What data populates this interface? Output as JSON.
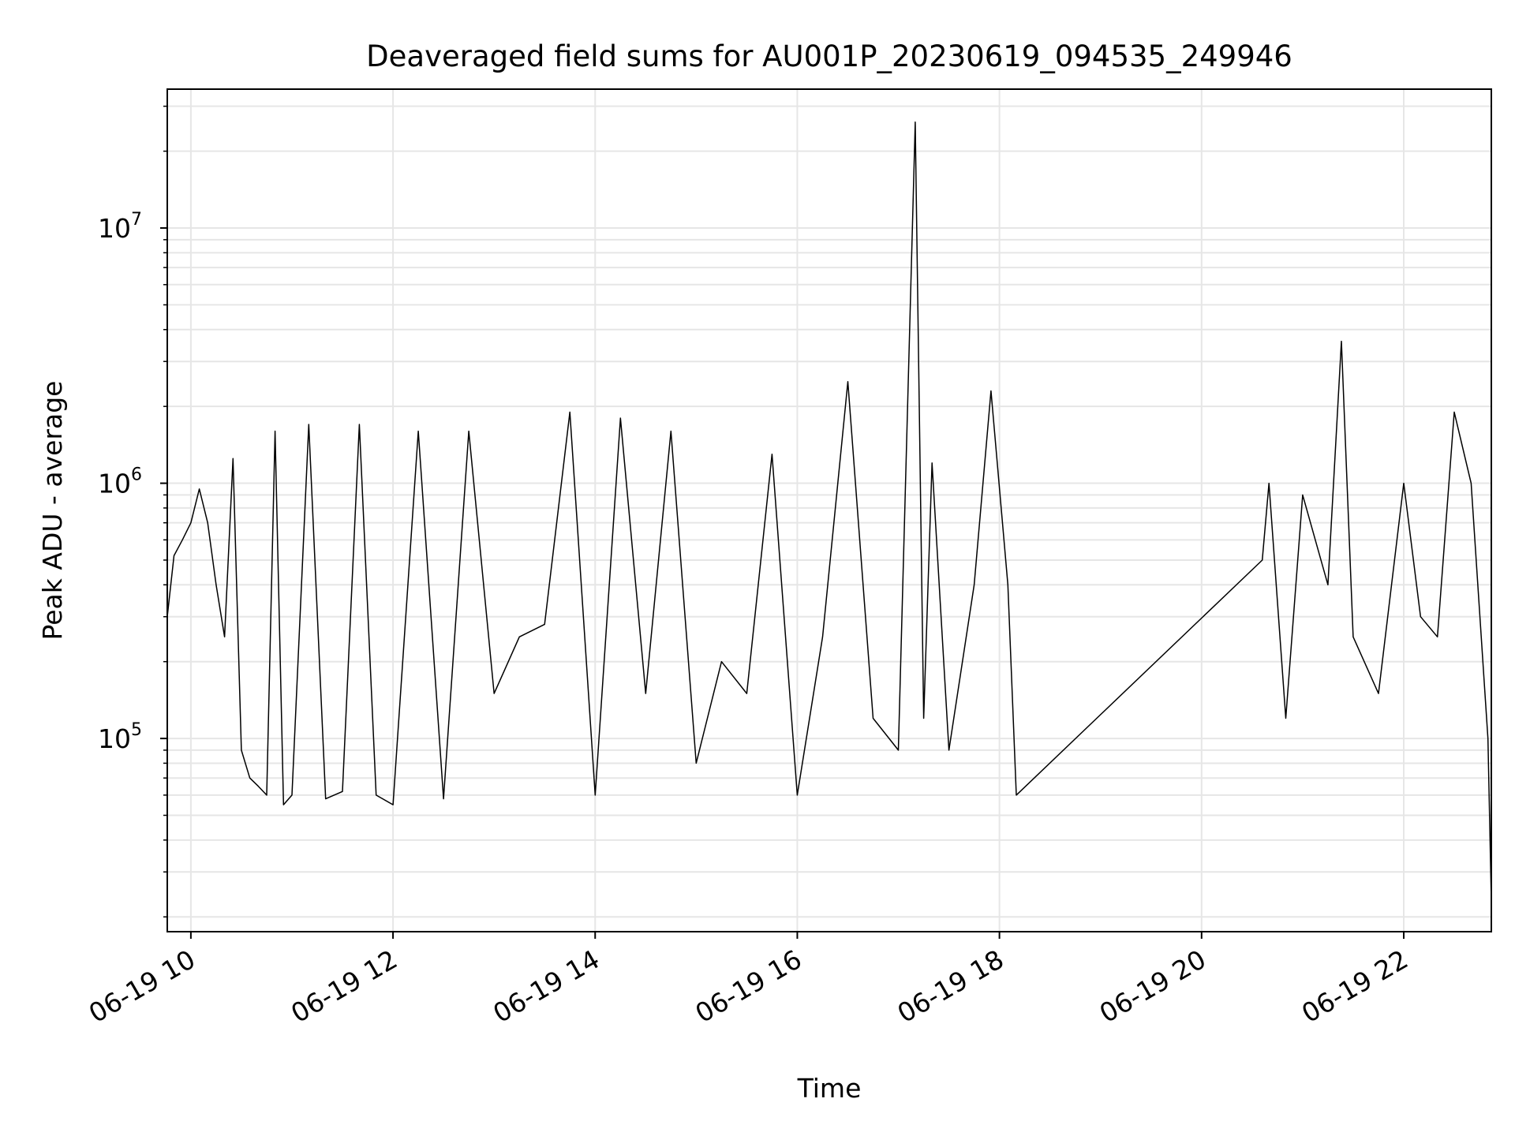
{
  "chart_data": {
    "type": "line",
    "title": "Deaveraged field sums for AU001P_20230619_094535_249946",
    "xlabel": "Time",
    "ylabel": "Peak ADU - average",
    "yscale": "log",
    "grid": true,
    "xlim": [
      "2023-06-19 09:46",
      "2023-06-19 22:52"
    ],
    "ylim": [
      17500,
      35000000
    ],
    "x_ticks": [
      "06-19 10",
      "06-19 12",
      "06-19 14",
      "06-19 16",
      "06-19 18",
      "06-19 20",
      "06-19 22"
    ],
    "x_tick_hours": [
      10,
      12,
      14,
      16,
      18,
      20,
      22
    ],
    "y_ticks": [
      {
        "value": 100000,
        "base": "10",
        "exp": "5"
      },
      {
        "value": 1000000,
        "base": "10",
        "exp": "6"
      },
      {
        "value": 10000000,
        "base": "10",
        "exp": "7"
      }
    ],
    "series": [
      {
        "color": "#000000",
        "x": [
          "2023-06-19 09:46",
          "2023-06-19 09:50",
          "2023-06-19 09:55",
          "2023-06-19 10:00",
          "2023-06-19 10:05",
          "2023-06-19 10:10",
          "2023-06-19 10:15",
          "2023-06-19 10:20",
          "2023-06-19 10:25",
          "2023-06-19 10:30",
          "2023-06-19 10:35",
          "2023-06-19 10:40",
          "2023-06-19 10:45",
          "2023-06-19 10:50",
          "2023-06-19 10:55",
          "2023-06-19 11:00",
          "2023-06-19 11:10",
          "2023-06-19 11:20",
          "2023-06-19 11:30",
          "2023-06-19 11:40",
          "2023-06-19 11:50",
          "2023-06-19 12:00",
          "2023-06-19 12:15",
          "2023-06-19 12:30",
          "2023-06-19 12:45",
          "2023-06-19 13:00",
          "2023-06-19 13:15",
          "2023-06-19 13:30",
          "2023-06-19 13:45",
          "2023-06-19 14:00",
          "2023-06-19 14:15",
          "2023-06-19 14:30",
          "2023-06-19 14:45",
          "2023-06-19 15:00",
          "2023-06-19 15:15",
          "2023-06-19 15:30",
          "2023-06-19 15:45",
          "2023-06-19 16:00",
          "2023-06-19 16:15",
          "2023-06-19 16:30",
          "2023-06-19 16:45",
          "2023-06-19 17:00",
          "2023-06-19 17:10",
          "2023-06-19 17:15",
          "2023-06-19 17:20",
          "2023-06-19 17:30",
          "2023-06-19 17:45",
          "2023-06-19 17:55",
          "2023-06-19 18:05",
          "2023-06-19 18:10",
          "2023-06-19 20:36",
          "2023-06-19 20:40",
          "2023-06-19 20:50",
          "2023-06-19 21:00",
          "2023-06-19 21:15",
          "2023-06-19 21:23",
          "2023-06-19 21:30",
          "2023-06-19 21:45",
          "2023-06-19 22:00",
          "2023-06-19 22:10",
          "2023-06-19 22:20",
          "2023-06-19 22:30",
          "2023-06-19 22:40",
          "2023-06-19 22:50",
          "2023-06-19 22:52"
        ],
        "y": [
          300000,
          520000,
          600000,
          700000,
          950000,
          700000,
          400000,
          250000,
          1250000,
          90000,
          70000,
          65000,
          60000,
          1600000,
          55000,
          60000,
          1700000,
          58000,
          62000,
          1700000,
          60000,
          55000,
          1600000,
          58000,
          1600000,
          150000,
          250000,
          280000,
          1900000,
          60000,
          1800000,
          150000,
          1600000,
          80000,
          200000,
          150000,
          1300000,
          60000,
          250000,
          2500000,
          120000,
          90000,
          26000000,
          120000,
          1200000,
          90000,
          400000,
          2300000,
          400000,
          60000,
          500000,
          1000000,
          120000,
          900000,
          400000,
          3600000,
          250000,
          150000,
          1000000,
          300000,
          250000,
          1900000,
          1000000,
          100000,
          23000
        ]
      }
    ]
  }
}
